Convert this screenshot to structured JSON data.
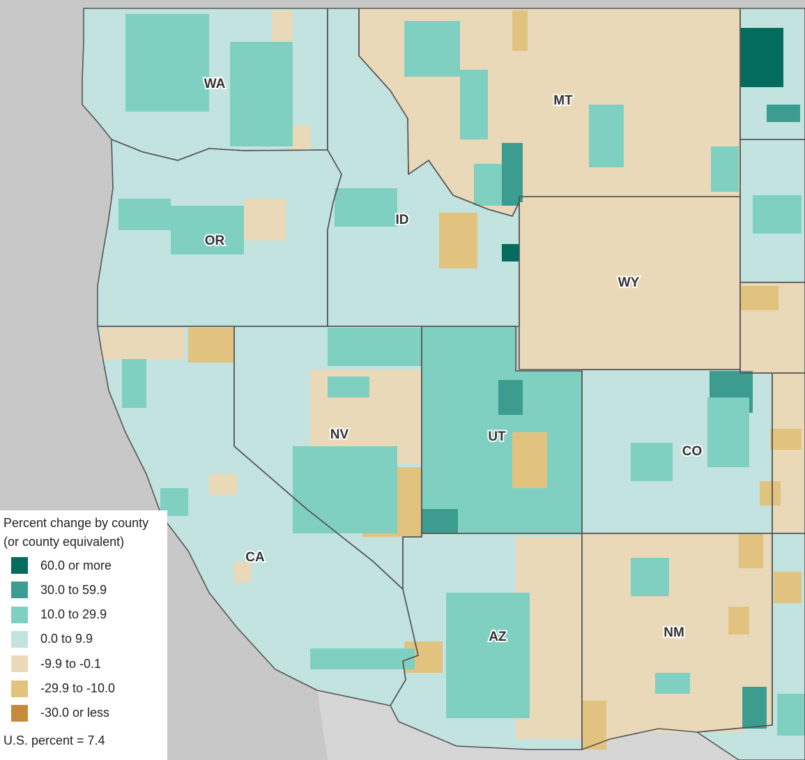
{
  "map": {
    "background_color": "#c8c8c8",
    "land_color": "#ffffff",
    "state_labels": [
      {
        "id": "wa",
        "text": "WA"
      },
      {
        "id": "or",
        "text": "OR"
      },
      {
        "id": "ca",
        "text": "CA"
      },
      {
        "id": "id",
        "text": "ID"
      },
      {
        "id": "nv",
        "text": "NV"
      },
      {
        "id": "mt",
        "text": "MT"
      },
      {
        "id": "wy",
        "text": "WY"
      },
      {
        "id": "ut",
        "text": "UT"
      },
      {
        "id": "co",
        "text": "CO"
      },
      {
        "id": "az",
        "text": "AZ"
      },
      {
        "id": "nm",
        "text": "NM"
      }
    ]
  },
  "legend": {
    "title": "Percent change by county (or county equivalent)",
    "items": [
      {
        "label": "60.0 or more",
        "color": "#046c5c"
      },
      {
        "label": "30.0 to 59.9",
        "color": "#3b9c8f"
      },
      {
        "label": "10.0 to 29.9",
        "color": "#80d0c1"
      },
      {
        "label": "0.0 to 9.9",
        "color": "#c2e3df"
      },
      {
        "label": "-9.9 to -0.1",
        "color": "#ead9b8"
      },
      {
        "label": "-29.9 to -10.0",
        "color": "#e2c27f"
      },
      {
        "label": "-30.0 or less",
        "color": "#c68a3b"
      }
    ],
    "us_note": "U.S. percent = 7.4"
  }
}
